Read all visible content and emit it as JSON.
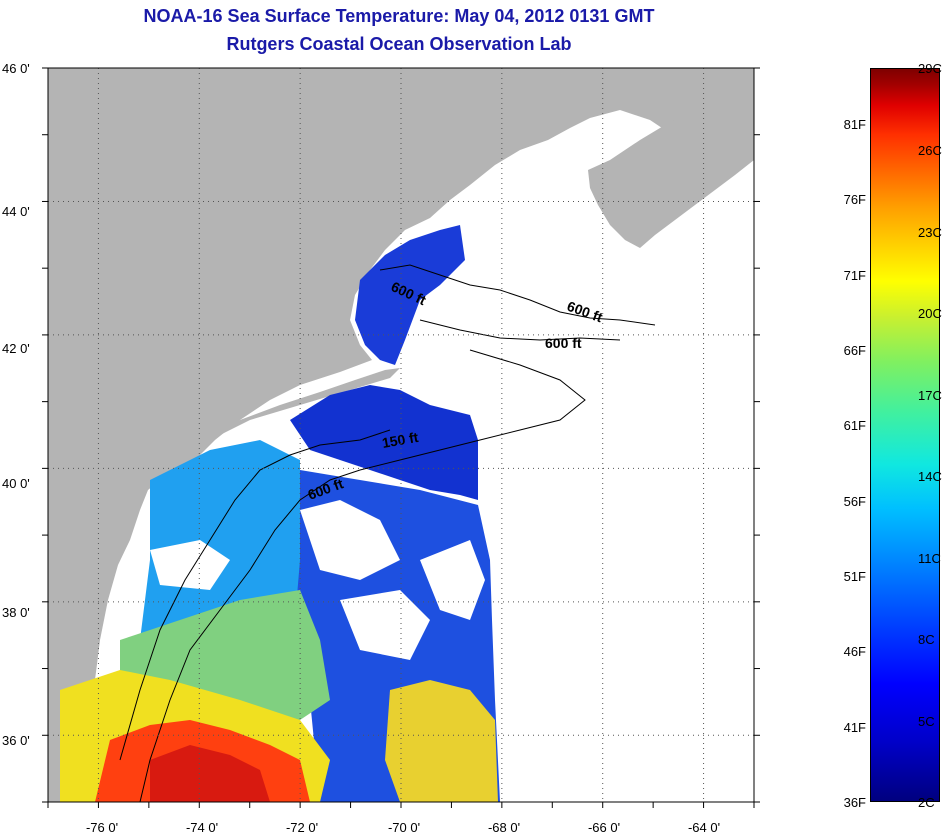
{
  "title": {
    "line1": "NOAA-16 Sea Surface Temperature:  May 04, 2012 0131 GMT",
    "line2": "Rutgers Coastal Ocean Observation Lab"
  },
  "map": {
    "latitude_labels": [
      "46 0'",
      "44 0'",
      "42 0'",
      "40 0'",
      "38 0'",
      "36 0'"
    ],
    "longitude_labels": [
      "-76 0'",
      "-74 0'",
      "-72 0'",
      "-70 0'",
      "-68 0'",
      "-66 0'",
      "-64 0'"
    ],
    "lat_range": [
      35.0,
      46.0
    ],
    "lon_range": [
      -77.0,
      -63.0
    ],
    "grid": "dotted",
    "contour_labels": [
      "600 ft",
      "600 ft",
      "600 ft",
      "150 ft",
      "600 ft"
    ],
    "land_color": "#b4b4b4",
    "cloud_color": "#ffffff"
  },
  "colorbar": {
    "fahrenheit_labels": [
      "81F",
      "76F",
      "71F",
      "66F",
      "61F",
      "56F",
      "51F",
      "46F",
      "41F",
      "36F"
    ],
    "celsius_labels": [
      "29C",
      "26C",
      "23C",
      "20C",
      "17C",
      "14C",
      "11C",
      "8C",
      "5C",
      "2C"
    ],
    "range_c": [
      2,
      29
    ]
  }
}
